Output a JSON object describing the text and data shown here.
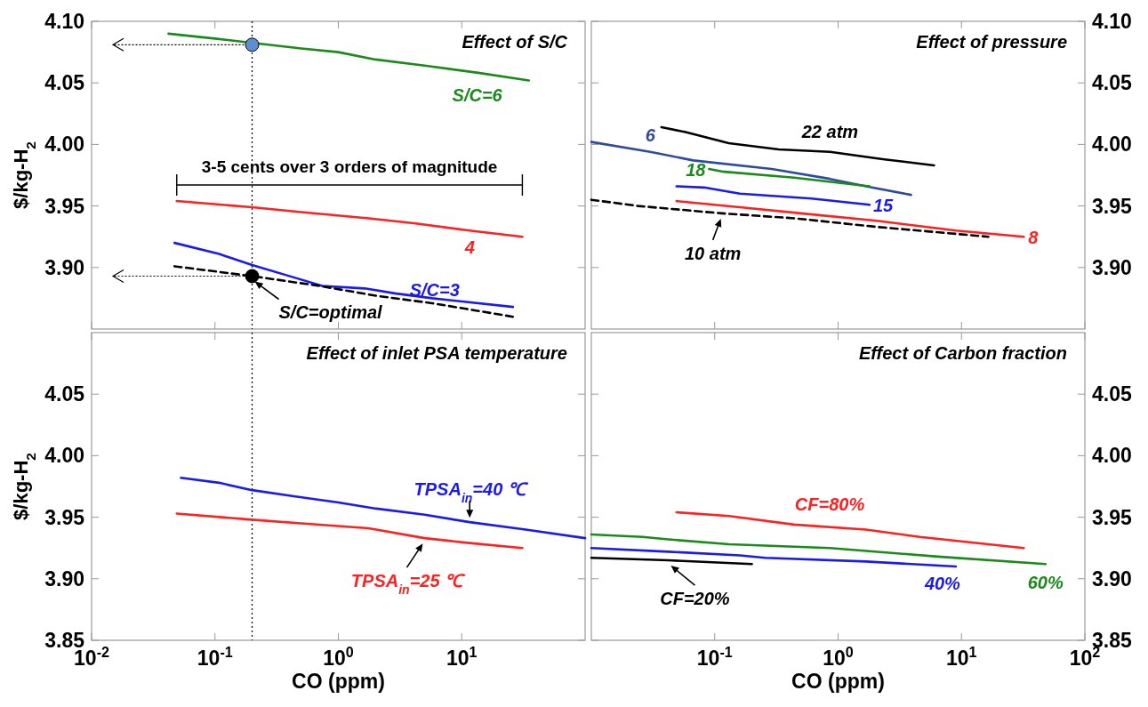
{
  "chart_data": [
    {
      "type": "line",
      "title": "Effect of S/C",
      "ylabel": "$/kg-H$_{2}$",
      "xlim": [
        0.01,
        100
      ],
      "ylim": [
        3.85,
        4.1
      ],
      "log": "x",
      "marker": "none",
      "tick_labels": "y",
      "xticks": [
        {
          "value": 0.01,
          "label": null
        },
        {
          "value": 0.1,
          "label": null
        },
        {
          "value": 1,
          "label": null
        },
        {
          "value": 10,
          "label": null
        }
      ],
      "yticks": [
        {
          "value": 3.9,
          "label": "3.90"
        },
        3.95,
        {
          "value": 4.0,
          "label": "4.00"
        },
        4.05,
        {
          "value": 4.1,
          "label": "4.10"
        }
      ],
      "series": [
        {
          "name": "S/C=6",
          "color": "#1a8a1a",
          "x": [
            0.042,
            0.1,
            0.5,
            1,
            2,
            5,
            14,
            35
          ],
          "values": [
            4.09,
            4.086,
            4.078,
            4.075,
            4.069,
            4.064,
            4.058,
            4.052
          ]
        },
        {
          "name": "4",
          "color": "#ff2020",
          "x": [
            0.049,
            0.2,
            0.5,
            1.76,
            4.1,
            11.6,
            31
          ],
          "values": [
            3.954,
            3.949,
            3.945,
            3.94,
            3.936,
            3.93,
            3.925
          ]
        },
        {
          "name": "S/C=3",
          "color": "#1a1aee",
          "x": [
            0.047,
            0.108,
            0.2,
            0.435,
            0.74,
            1.64,
            2.87,
            5.76,
            26
          ],
          "values": [
            3.92,
            3.911,
            3.902,
            3.892,
            3.885,
            3.883,
            3.879,
            3.875,
            3.868
          ]
        },
        {
          "name": "S/C=optimal",
          "color": "#000000",
          "line_style": "dashed",
          "x": [
            0.047,
            0.2,
            0.71,
            2.03,
            5.76,
            26
          ],
          "values": [
            3.901,
            3.893,
            3.885,
            3.877,
            3.871,
            3.86
          ]
        },
        {
          "type": "scatter",
          "marker": "circle",
          "colors": [
            "#5b8fd0",
            "#000000"
          ],
          "x": [
            0.2,
            0.2
          ],
          "values": [
            4.081,
            3.893
          ]
        }
      ],
      "ref_lines": [
        {
          "axis": "x",
          "value": 0.2,
          "color": "#000000",
          "line_style": "dotted"
        }
      ],
      "annotations": [
        "3-5 cents over 3 orders of magnitude"
      ]
    },
    {
      "type": "line",
      "title": "Effect of pressure",
      "xlim": [
        0.01,
        100
      ],
      "ylim": [
        3.85,
        4.1
      ],
      "log": "x",
      "marker": "none",
      "tick_labels": "y",
      "xticks": [
        {
          "value": 0.1,
          "label": null
        },
        {
          "value": 1,
          "label": null
        },
        {
          "value": 10,
          "label": null
        },
        {
          "value": 100,
          "label": null
        }
      ],
      "yticks": [
        {
          "value": 3.9,
          "label": "3.90"
        },
        3.95,
        {
          "value": 4.0,
          "label": "4.00"
        },
        4.05,
        {
          "value": 4.1,
          "label": "4.10"
        }
      ],
      "series": [
        {
          "name": "22 atm",
          "color": "#000000",
          "x": [
            0.037,
            0.058,
            0.13,
            0.33,
            0.86,
            2.3,
            6
          ],
          "values": [
            4.014,
            4.01,
            4.001,
            3.996,
            3.994,
            3.988,
            3.983
          ]
        },
        {
          "name": "6",
          "color": "#2e4aa0",
          "x": [
            0.01,
            0.03,
            0.067,
            0.29,
            0.86,
            1.68,
            3.9
          ],
          "values": [
            4.002,
            3.994,
            3.987,
            3.98,
            3.972,
            3.966,
            3.959
          ]
        },
        {
          "name": "18",
          "color": "#1a8a1a",
          "x": [
            0.09,
            0.114,
            0.44,
            1.8
          ],
          "values": [
            3.98,
            3.978,
            3.973,
            3.966
          ]
        },
        {
          "name": "15",
          "color": "#1a1aee",
          "x": [
            0.049,
            0.082,
            0.16,
            0.61,
            1.8
          ],
          "values": [
            3.966,
            3.965,
            3.96,
            3.956,
            3.951
          ]
        },
        {
          "name": "10 atm",
          "color": "#000000",
          "line_style": "dashed",
          "x": [
            0.01,
            0.024,
            0.114,
            0.44,
            2.06,
            16.5
          ],
          "values": [
            3.955,
            3.95,
            3.944,
            3.94,
            3.933,
            3.925
          ]
        },
        {
          "name": "8",
          "color": "#ff2020",
          "x": [
            0.049,
            0.16,
            0.5,
            2.06,
            9,
            32
          ],
          "values": [
            3.954,
            3.949,
            3.944,
            3.938,
            3.93,
            3.925
          ]
        }
      ]
    },
    {
      "type": "line",
      "title": "Effect of inlet PSA temperature",
      "xlabel": "CO (ppm)",
      "ylabel": "$/kg-H$_{2}$",
      "xlim": [
        0.01,
        100
      ],
      "ylim": [
        3.85,
        4.1
      ],
      "log": "x",
      "marker": "none",
      "xticks": [
        {
          "value": 0.01,
          "label": "10$^{-2}$"
        },
        {
          "value": 0.1,
          "label": "10$^{-1}$"
        },
        {
          "value": 1,
          "label": "10$^{0}$"
        },
        {
          "value": 10,
          "label": "10$^{1}$"
        }
      ],
      "yticks": [
        3.85,
        {
          "value": 3.9,
          "label": "3.90"
        },
        3.95,
        {
          "value": 4.0,
          "label": "4.00"
        },
        4.05
      ],
      "series": [
        {
          "name": "TPSA$_{in}$=40 ℃",
          "color": "#1a1aee",
          "x": [
            0.053,
            0.108,
            0.2,
            0.435,
            1,
            2.03,
            5,
            11.6,
            33,
            100
          ],
          "values": [
            3.982,
            3.978,
            3.972,
            3.967,
            3.962,
            3.957,
            3.952,
            3.946,
            3.94,
            3.933
          ]
        },
        {
          "name": "TPSA$_{in}$=25 ℃",
          "color": "#ff2020",
          "x": [
            0.049,
            0.2,
            0.5,
            1.76,
            5,
            11.6,
            31
          ],
          "values": [
            3.953,
            3.948,
            3.945,
            3.941,
            3.933,
            3.929,
            3.925
          ]
        }
      ],
      "ref_lines": [
        {
          "axis": "x",
          "value": 0.2,
          "color": "#000000",
          "line_style": "dotted"
        }
      ]
    },
    {
      "type": "line",
      "title": "Effect of Carbon fraction",
      "xlabel": "CO (ppm)",
      "xlim": [
        0.01,
        100
      ],
      "ylim": [
        3.85,
        4.1
      ],
      "log": "x",
      "marker": "none",
      "xticks": [
        {
          "value": 0.1,
          "label": "10$^{-1}$"
        },
        {
          "value": 1,
          "label": "10$^{0}$"
        },
        {
          "value": 10,
          "label": "10$^{1}$"
        },
        {
          "value": 100,
          "label": "10$^{2}$"
        }
      ],
      "yticks": [
        3.85,
        {
          "value": 3.9,
          "label": "3.90"
        },
        3.95,
        {
          "value": 4.0,
          "label": "4.00"
        },
        4.05
      ],
      "series": [
        {
          "name": "CF=80%",
          "color": "#ff2020",
          "x": [
            0.049,
            0.131,
            0.44,
            1.68,
            4.6,
            32
          ],
          "values": [
            3.954,
            3.951,
            3.944,
            3.94,
            3.934,
            3.925
          ]
        },
        {
          "name": "60%",
          "color": "#1a8a1a",
          "x": [
            0.01,
            0.026,
            0.042,
            0.131,
            0.86,
            6.4,
            48
          ],
          "values": [
            3.936,
            3.934,
            3.932,
            3.928,
            3.925,
            3.918,
            3.912
          ]
        },
        {
          "name": "40%",
          "color": "#1a1aee",
          "x": [
            0.01,
            0.042,
            0.16,
            0.256,
            1.68,
            9
          ],
          "values": [
            3.925,
            3.922,
            3.919,
            3.917,
            3.914,
            3.91
          ]
        },
        {
          "name": "CF=20%",
          "color": "#000000",
          "x": [
            0.01,
            0.042,
            0.2
          ],
          "values": [
            3.917,
            3.915,
            3.912
          ]
        }
      ]
    }
  ]
}
